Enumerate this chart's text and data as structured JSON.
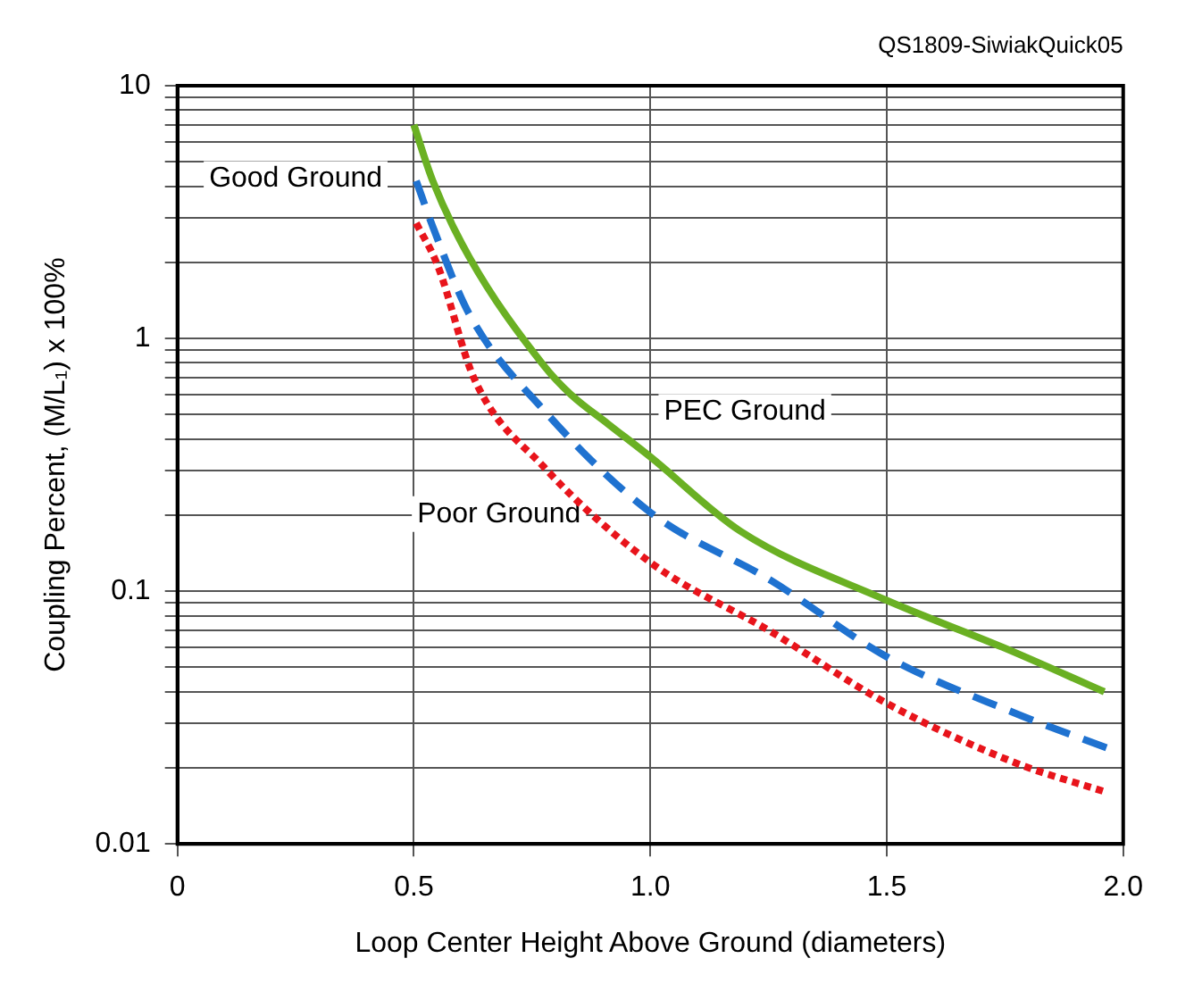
{
  "chart_data": {
    "type": "line",
    "xlabel": "Loop Center Height Above Ground (diameters)",
    "ylabel": "Coupling Percent, (M/L₁) x 100%",
    "log": "y",
    "grid": true,
    "legend": false,
    "marker": "none",
    "xlim": [
      0,
      2.0
    ],
    "xticks": [
      0,
      0.5,
      {
        "value": 1.0,
        "label": "1.0"
      },
      1.5,
      {
        "value": 2.0,
        "label": "2.0"
      }
    ],
    "ylim": [
      0.01,
      10
    ],
    "yticks": [
      0.01,
      {
        "value": 0.02,
        "label": null
      },
      {
        "value": 0.03,
        "label": null
      },
      {
        "value": 0.04,
        "label": null
      },
      {
        "value": 0.05,
        "label": null
      },
      {
        "value": 0.06,
        "label": null
      },
      {
        "value": 0.07,
        "label": null
      },
      {
        "value": 0.08,
        "label": null
      },
      {
        "value": 0.09,
        "label": null
      },
      0.1,
      {
        "value": 0.2,
        "label": null
      },
      {
        "value": 0.3,
        "label": null
      },
      {
        "value": 0.4,
        "label": null
      },
      {
        "value": 0.5,
        "label": null
      },
      {
        "value": 0.6,
        "label": null
      },
      {
        "value": 0.7,
        "label": null
      },
      {
        "value": 0.8,
        "label": null
      },
      {
        "value": 0.9,
        "label": null
      },
      1,
      {
        "value": 2,
        "label": null
      },
      {
        "value": 3,
        "label": null
      },
      {
        "value": 4,
        "label": null
      },
      {
        "value": 5,
        "label": null
      },
      {
        "value": 6,
        "label": null
      },
      {
        "value": 7,
        "label": null
      },
      {
        "value": 8,
        "label": null
      },
      {
        "value": 9,
        "label": null
      },
      10
    ],
    "series": [
      {
        "color": "#6ab023",
        "line_style": "solid",
        "x": [
          0.5,
          0.54,
          0.617,
          0.775,
          0.832,
          0.91,
          1.0,
          1.19,
          1.5,
          1.745,
          1.96
        ],
        "values": [
          7.0,
          4.2,
          2.1,
          0.78,
          0.6,
          0.46,
          0.34,
          0.173,
          0.092,
          0.06,
          0.04
        ]
      },
      {
        "color": "#1f72d0",
        "line_style": "dashed",
        "x": [
          0.505,
          0.54,
          0.617,
          0.775,
          1.0,
          1.256,
          1.5,
          1.77,
          1.965
        ],
        "values": [
          4.2,
          2.77,
          1.25,
          0.52,
          0.205,
          0.11,
          0.055,
          0.033,
          0.024
        ]
      },
      {
        "color": "#e8141b",
        "line_style": "dotted",
        "x": [
          0.505,
          0.55,
          0.628,
          0.775,
          1.0,
          1.256,
          1.5,
          1.77,
          1.965
        ],
        "values": [
          2.86,
          1.95,
          0.69,
          0.31,
          0.13,
          0.069,
          0.036,
          0.021,
          0.016
        ]
      }
    ],
    "annotations": [
      "QS1809-SiwiakQuick05",
      "Good Ground",
      "PEC Ground",
      "Poor Ground"
    ]
  }
}
